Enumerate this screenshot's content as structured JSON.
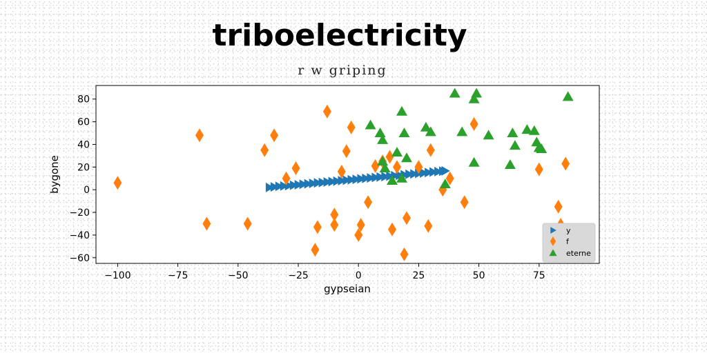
{
  "chart_data": {
    "type": "scatter",
    "title": "triboelectricity",
    "subtitle": "r w griping",
    "xlabel": "gypseian",
    "ylabel": "bygone",
    "xlim": [
      -109,
      100
    ],
    "ylim": [
      -65,
      92
    ],
    "xticks": [
      -100,
      -75,
      -50,
      -25,
      0,
      25,
      50,
      75
    ],
    "yticks": [
      -60,
      -40,
      -20,
      0,
      20,
      40,
      60,
      80
    ],
    "xtick_labels": [
      "−100",
      "−75",
      "−50",
      "−25",
      "0",
      "25",
      "50",
      "75"
    ],
    "ytick_labels": [
      "−60",
      "−40",
      "−20",
      "0",
      "20",
      "40",
      "60",
      "80"
    ],
    "grid": false,
    "legend_position": "lower-right",
    "series": [
      {
        "name": "y",
        "marker": "triangle-right",
        "color": "#1f77b4",
        "points": [
          [
            -37,
            2
          ],
          [
            -35,
            2.5
          ],
          [
            -33,
            3
          ],
          [
            -31,
            3.3
          ],
          [
            -29,
            3.6
          ],
          [
            -27,
            4
          ],
          [
            -25,
            4.4
          ],
          [
            -23,
            4.8
          ],
          [
            -21,
            5.2
          ],
          [
            -19,
            5.6
          ],
          [
            -17,
            6
          ],
          [
            -15,
            6.4
          ],
          [
            -13,
            6.8
          ],
          [
            -11,
            7.2
          ],
          [
            -9,
            7.6
          ],
          [
            -7,
            8
          ],
          [
            -5,
            8.4
          ],
          [
            -3,
            8.8
          ],
          [
            -1,
            9.2
          ],
          [
            1,
            9.6
          ],
          [
            3,
            10
          ],
          [
            5,
            10.4
          ],
          [
            7,
            10.8
          ],
          [
            9,
            11.2
          ],
          [
            11,
            11.6
          ],
          [
            13,
            12
          ],
          [
            15,
            12.4
          ],
          [
            17,
            12.8
          ],
          [
            19,
            13.2
          ],
          [
            21,
            13.6
          ],
          [
            23,
            14
          ],
          [
            25,
            14.4
          ],
          [
            27,
            14.8
          ],
          [
            29,
            15.2
          ],
          [
            31,
            15.6
          ],
          [
            33,
            16
          ],
          [
            35,
            16.4
          ],
          [
            36,
            16.6
          ]
        ]
      },
      {
        "name": "f",
        "marker": "diamond",
        "color": "#ff7f0e",
        "points": [
          [
            -100,
            6
          ],
          [
            -66,
            48
          ],
          [
            -63,
            -30
          ],
          [
            -46,
            -30
          ],
          [
            -39,
            35
          ],
          [
            -35,
            48
          ],
          [
            -30,
            10
          ],
          [
            -26,
            19
          ],
          [
            -18,
            -53
          ],
          [
            -17,
            -33
          ],
          [
            -13,
            69
          ],
          [
            -10,
            -22
          ],
          [
            -10,
            -31
          ],
          [
            -7,
            16
          ],
          [
            -5,
            34
          ],
          [
            -3,
            55
          ],
          [
            0,
            -40
          ],
          [
            1,
            -31
          ],
          [
            4,
            -11
          ],
          [
            7,
            21
          ],
          [
            10,
            25
          ],
          [
            13,
            29
          ],
          [
            14,
            -35
          ],
          [
            16,
            20
          ],
          [
            19,
            -57
          ],
          [
            20,
            -25
          ],
          [
            25,
            20
          ],
          [
            29,
            -32
          ],
          [
            30,
            35
          ],
          [
            35,
            0
          ],
          [
            38,
            10
          ],
          [
            44,
            -11
          ],
          [
            48,
            58
          ],
          [
            75,
            18
          ],
          [
            83,
            -15
          ],
          [
            84,
            -31
          ],
          [
            86,
            23
          ]
        ]
      },
      {
        "name": "eterne",
        "marker": "triangle-up",
        "color": "#2ca02c",
        "points": [
          [
            5,
            57
          ],
          [
            9,
            50
          ],
          [
            10,
            44
          ],
          [
            10,
            25
          ],
          [
            11,
            19
          ],
          [
            14,
            8
          ],
          [
            16,
            33
          ],
          [
            18,
            10
          ],
          [
            18,
            69
          ],
          [
            19,
            50
          ],
          [
            20,
            28
          ],
          [
            28,
            55
          ],
          [
            30,
            51
          ],
          [
            36,
            5
          ],
          [
            40,
            85
          ],
          [
            43,
            51
          ],
          [
            48,
            80
          ],
          [
            48,
            24
          ],
          [
            49,
            85
          ],
          [
            54,
            48
          ],
          [
            63,
            22
          ],
          [
            64,
            50
          ],
          [
            65,
            39
          ],
          [
            70,
            53
          ],
          [
            73,
            52
          ],
          [
            74,
            42
          ],
          [
            75,
            37
          ],
          [
            76,
            36
          ],
          [
            87,
            82
          ]
        ]
      }
    ]
  }
}
